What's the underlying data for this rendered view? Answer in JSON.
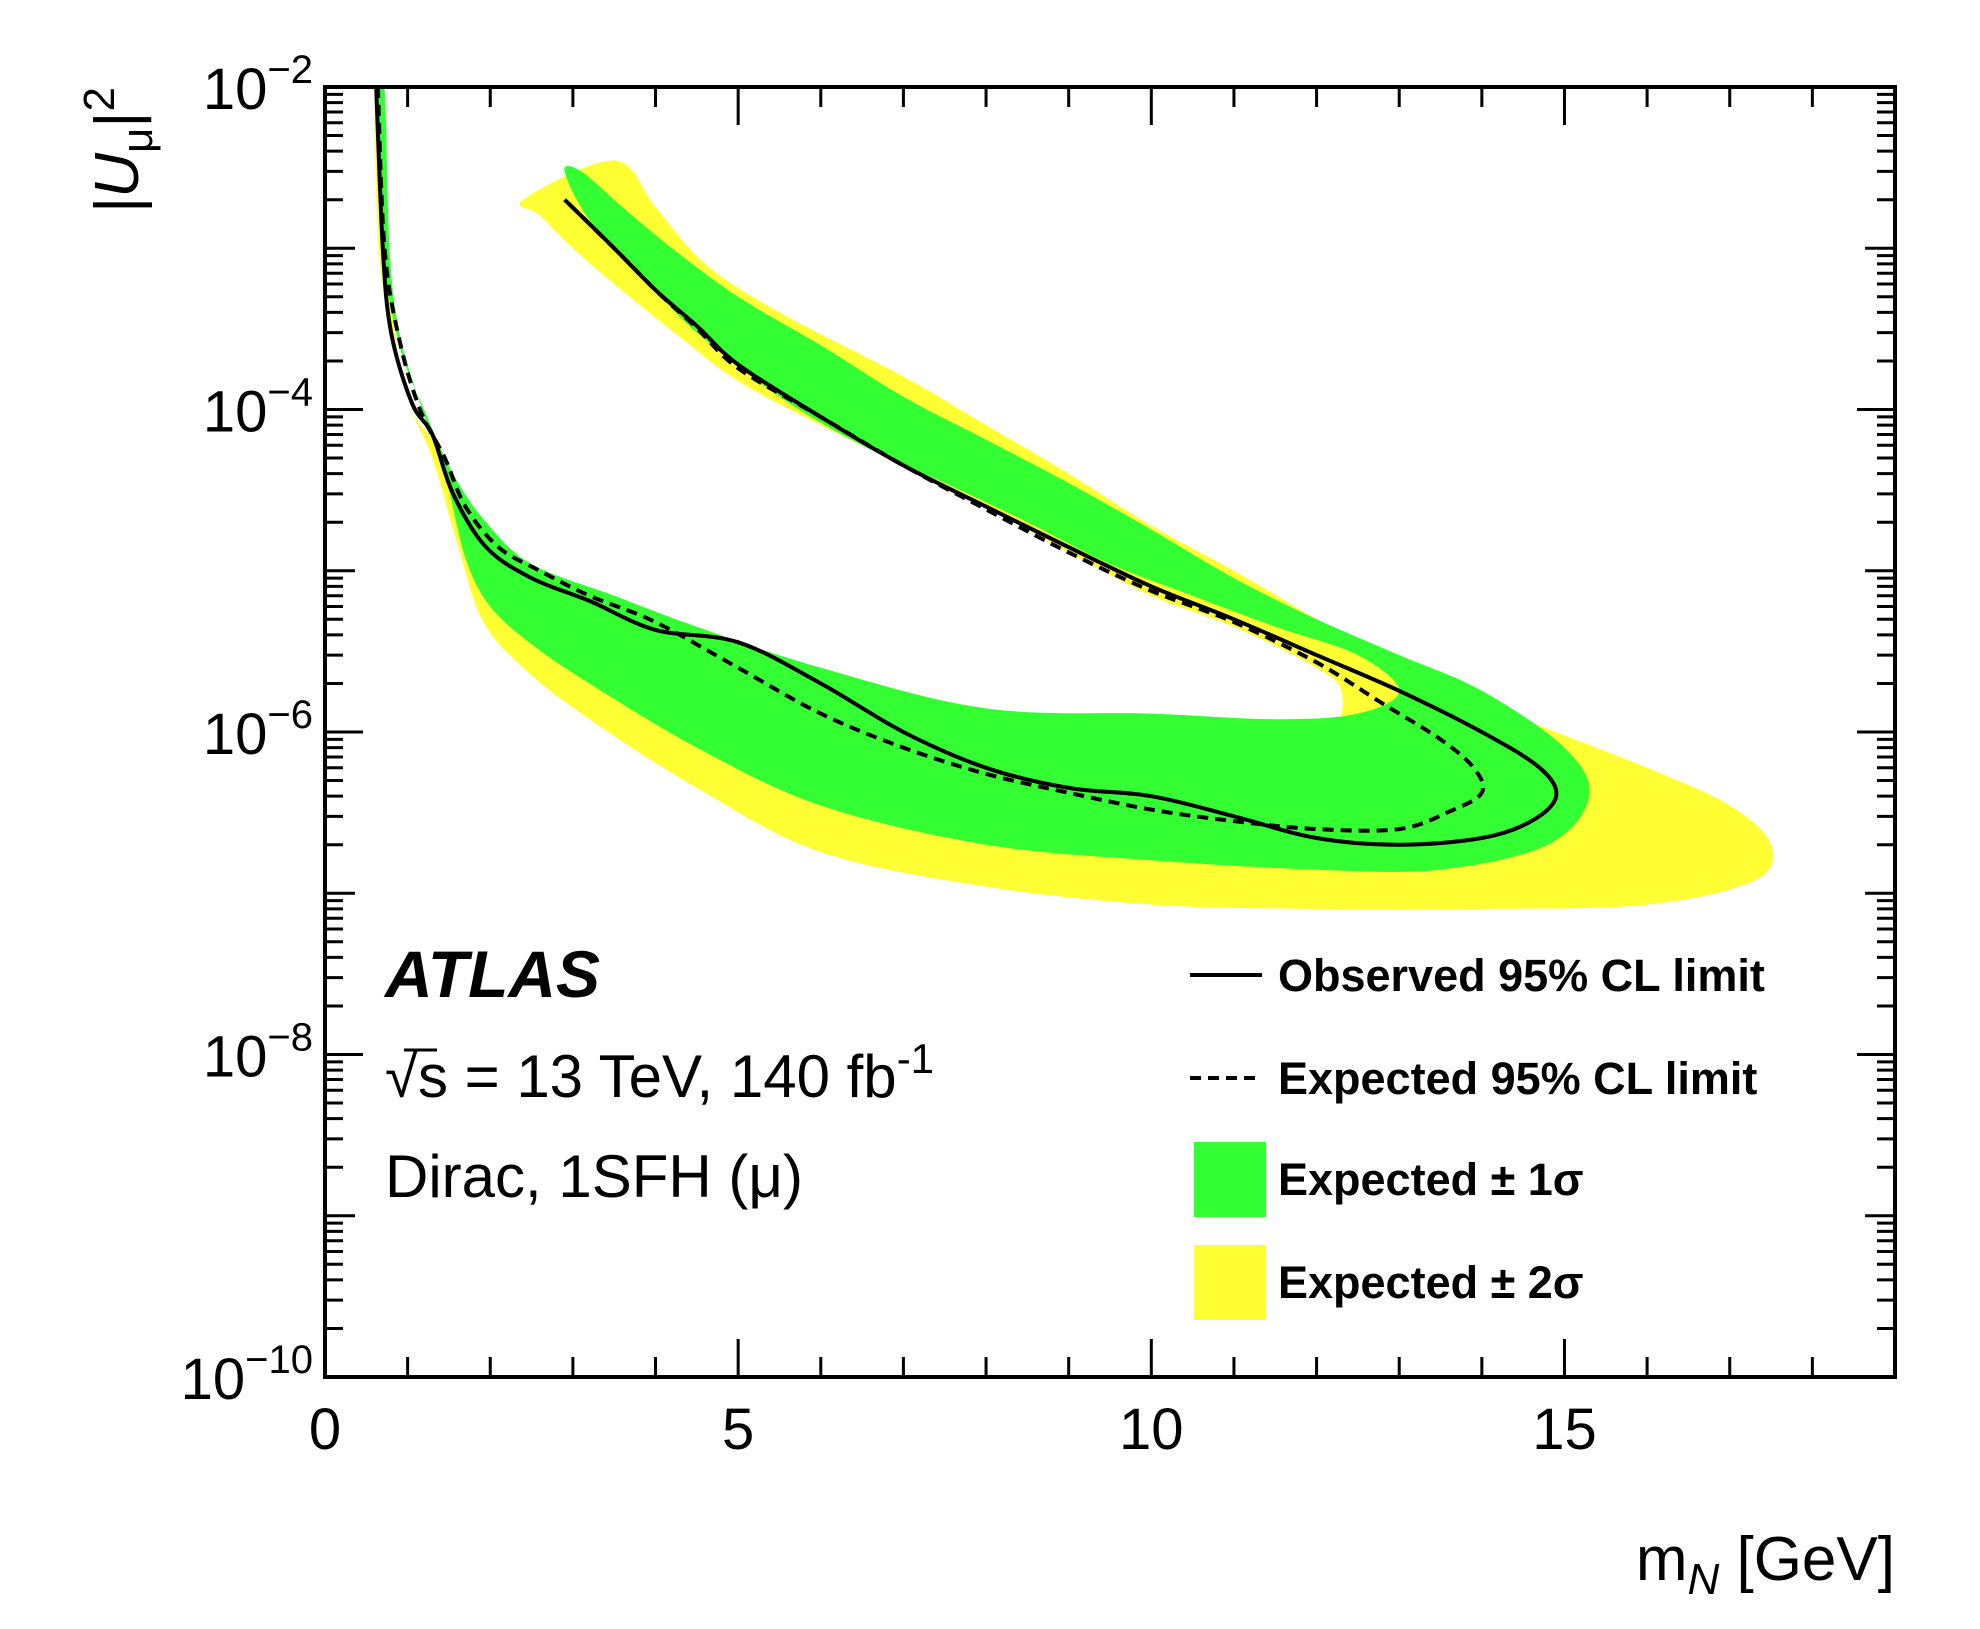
{
  "chart_data": {
    "type": "contour",
    "title": "",
    "xlabel": {
      "main": "m",
      "sub": "N",
      "unit": " [GeV]"
    },
    "ylabel": {
      "open": "|U",
      "sub": "μ",
      "close": "|",
      "sup": "2"
    },
    "xlim": [
      0,
      19
    ],
    "ylim": [
      1e-10,
      0.01
    ],
    "yscale": "log",
    "x_ticks": [
      0,
      5,
      10,
      15
    ],
    "x_tick_labels": [
      "0",
      "5",
      "10",
      "15"
    ],
    "y_ticks": [
      1e-10,
      1e-08,
      1e-06,
      0.0001,
      0.01
    ],
    "y_tick_labels": [
      {
        "base": "10",
        "exp": "−10"
      },
      {
        "base": "10",
        "exp": "−8"
      },
      {
        "base": "10",
        "exp": "−6"
      },
      {
        "base": "10",
        "exp": "−4"
      },
      {
        "base": "10",
        "exp": "−2"
      }
    ],
    "annotations": {
      "experiment": "ATLAS",
      "energy": {
        "sqrt": "√",
        "s": "s",
        "rest": " = 13 TeV, 140 fb",
        "sup": "-1"
      },
      "model": "Dirac, 1SFH (μ)"
    },
    "legend": {
      "position": "bottom-right",
      "entries": [
        {
          "label": "Observed 95% CL limit",
          "style": "solid"
        },
        {
          "label": "Expected 95% CL limit",
          "style": "dashed"
        },
        {
          "label": "Expected ± 1σ",
          "style": "fill",
          "color": "#33ff33"
        },
        {
          "label": "Expected ± 2σ",
          "style": "fill",
          "color": "#ffff33"
        }
      ]
    },
    "colors": {
      "band1sigma": "#33ff33",
      "band2sigma": "#ffff33",
      "line": "#000000"
    },
    "series": [
      {
        "style": "fill-2sigma",
        "points": [
          [
            0.6,
            0.01
          ],
          [
            0.65,
            0.001
          ],
          [
            0.8,
            0.0003
          ],
          [
            1.05,
            0.0001
          ],
          [
            1.35,
            6e-05
          ],
          [
            1.75,
            2.5e-05
          ],
          [
            2.2,
            1.2e-05
          ],
          [
            3,
            8e-06
          ],
          [
            4.2,
            5e-06
          ],
          [
            6,
            2.2e-06
          ],
          [
            8,
            1.2e-06
          ],
          [
            10,
            1e-06
          ],
          [
            11.5,
            9.5e-07
          ],
          [
            12.2,
            1.1e-06
          ],
          [
            12.3,
            1.8e-06
          ],
          [
            12,
            2.5e-06
          ],
          [
            11,
            4.5e-06
          ],
          [
            10,
            7e-06
          ],
          [
            9,
            1.3e-05
          ],
          [
            8,
            2.5e-05
          ],
          [
            7,
            4.5e-05
          ],
          [
            6,
            8e-05
          ],
          [
            5,
            0.00015
          ],
          [
            4.3,
            0.00028
          ],
          [
            3.5,
            0.0006
          ],
          [
            3,
            0.001
          ],
          [
            2.6,
            0.0016
          ],
          [
            2.4,
            0.002
          ],
          [
            3.5,
            0.0035
          ],
          [
            4,
            0.0018
          ],
          [
            4.6,
            0.0008
          ],
          [
            5.5,
            0.0004
          ],
          [
            7,
            0.00016
          ],
          [
            8,
            8e-05
          ],
          [
            9,
            4e-05
          ],
          [
            10,
            1.9e-05
          ],
          [
            11,
            1e-05
          ],
          [
            12,
            5e-06
          ],
          [
            13,
            2.5e-06
          ],
          [
            14.5,
            1.2e-06
          ],
          [
            16,
            6e-07
          ],
          [
            17,
            3.5e-07
          ],
          [
            17.5,
            2e-07
          ],
          [
            17.3,
            1.2e-07
          ],
          [
            16,
            8.5e-08
          ],
          [
            14,
            8e-08
          ],
          [
            12,
            8e-08
          ],
          [
            10,
            8.5e-08
          ],
          [
            8,
            1.1e-07
          ],
          [
            6,
            1.8e-07
          ],
          [
            4.5,
            4.5e-07
          ],
          [
            3.2,
            1.2e-06
          ],
          [
            2.4,
            2.5e-06
          ],
          [
            1.9,
            5e-06
          ],
          [
            1.6,
            1.5e-05
          ],
          [
            1.3,
            5e-05
          ],
          [
            1,
            0.00012
          ],
          [
            0.8,
            0.0005
          ],
          [
            0.7,
            0.01
          ]
        ]
      },
      {
        "style": "fill-1sigma",
        "points": [
          [
            0.62,
            0.01
          ],
          [
            0.7,
            0.001
          ],
          [
            0.9,
            0.00025
          ],
          [
            1.2,
            0.0001
          ],
          [
            1.55,
            4e-05
          ],
          [
            1.95,
            2e-05
          ],
          [
            2.5,
            1.1e-05
          ],
          [
            3.5,
            7e-06
          ],
          [
            4.5,
            4.5e-06
          ],
          [
            6,
            2.5e-06
          ],
          [
            8,
            1.4e-06
          ],
          [
            10,
            1.3e-06
          ],
          [
            11.5,
            1.2e-06
          ],
          [
            12.5,
            1.3e-06
          ],
          [
            13,
            1.8e-06
          ],
          [
            12.5,
            3e-06
          ],
          [
            11.5,
            4.5e-06
          ],
          [
            10.5,
            7e-06
          ],
          [
            9.5,
            1.1e-05
          ],
          [
            8.5,
            2e-05
          ],
          [
            7.5,
            3.5e-05
          ],
          [
            6.5,
            6e-05
          ],
          [
            5.5,
            0.00012
          ],
          [
            4.5,
            0.0003
          ],
          [
            3.8,
            0.0007
          ],
          [
            3.2,
            0.0015
          ],
          [
            2.9,
            0.003
          ],
          [
            3.1,
            0.003
          ],
          [
            3.6,
            0.0018
          ],
          [
            4.2,
            0.001
          ],
          [
            5,
            0.0005
          ],
          [
            6,
            0.00025
          ],
          [
            7,
            0.00012
          ],
          [
            8,
            6.5e-05
          ],
          [
            9,
            3.5e-05
          ],
          [
            10,
            1.8e-05
          ],
          [
            11,
            9e-06
          ],
          [
            12,
            5e-06
          ],
          [
            13,
            3e-06
          ],
          [
            14,
            1.8e-06
          ],
          [
            15,
            8e-07
          ],
          [
            15.3,
            4e-07
          ],
          [
            14.8,
            2e-07
          ],
          [
            13.5,
            1.4e-07
          ],
          [
            12,
            1.4e-07
          ],
          [
            10,
            1.6e-07
          ],
          [
            8,
            2e-07
          ],
          [
            6,
            3.5e-07
          ],
          [
            4.5,
            8e-07
          ],
          [
            3.2,
            2e-06
          ],
          [
            2.5,
            3.5e-06
          ],
          [
            2,
            6e-06
          ],
          [
            1.7,
            1.2e-05
          ],
          [
            1.45,
            4e-05
          ],
          [
            1.15,
            0.00011
          ],
          [
            0.9,
            0.0003
          ],
          [
            0.78,
            0.001
          ],
          [
            0.72,
            0.01
          ]
        ]
      },
      {
        "name": "Observed 95% CL limit",
        "style": "solid",
        "points": [
          [
            0.62,
            0.01
          ],
          [
            0.7,
            0.001
          ],
          [
            0.8,
            0.0003
          ],
          [
            1.05,
            0.00011
          ],
          [
            1.3,
            7e-05
          ],
          [
            1.55,
            3e-05
          ],
          [
            1.95,
            1.4e-05
          ],
          [
            2.5,
            9e-06
          ],
          [
            3.2,
            6.5e-06
          ],
          [
            4,
            4.3e-06
          ],
          [
            5,
            3.6e-06
          ],
          [
            6,
            2e-06
          ],
          [
            7,
            1e-06
          ],
          [
            8,
            6e-07
          ],
          [
            9,
            4.5e-07
          ],
          [
            10,
            4e-07
          ],
          [
            11,
            3e-07
          ],
          [
            12,
            2.2e-07
          ],
          [
            13,
            2e-07
          ],
          [
            14,
            2.2e-07
          ],
          [
            14.6,
            2.8e-07
          ],
          [
            14.9,
            4e-07
          ],
          [
            14.7,
            6e-07
          ],
          [
            14,
            1e-06
          ],
          [
            13,
            1.8e-06
          ],
          [
            12,
            3e-06
          ],
          [
            11,
            5e-06
          ],
          [
            10,
            8e-06
          ],
          [
            9,
            1.4e-05
          ],
          [
            8,
            2.5e-05
          ],
          [
            7,
            4.5e-05
          ],
          [
            6,
            9e-05
          ],
          [
            5,
            0.00019
          ],
          [
            4.5,
            0.00033
          ],
          [
            4,
            0.00055
          ],
          [
            3.5,
            0.001
          ],
          [
            2.9,
            0.002
          ]
        ]
      },
      {
        "name": "Expected 95% CL limit",
        "style": "dashed",
        "points": [
          [
            0.64,
            0.01
          ],
          [
            0.72,
            0.001
          ],
          [
            0.9,
            0.00027
          ],
          [
            1.15,
            0.0001
          ],
          [
            1.45,
            5e-05
          ],
          [
            1.7,
            2.5e-05
          ],
          [
            2.1,
            1.4e-05
          ],
          [
            2.6,
            1e-05
          ],
          [
            3.2,
            7e-06
          ],
          [
            4,
            4.8e-06
          ],
          [
            5,
            2.5e-06
          ],
          [
            6,
            1.3e-06
          ],
          [
            7,
            8e-07
          ],
          [
            8,
            5.5e-07
          ],
          [
            9,
            4.2e-07
          ],
          [
            10,
            3.3e-07
          ],
          [
            11,
            2.8e-07
          ],
          [
            12,
            2.5e-07
          ],
          [
            13,
            2.5e-07
          ],
          [
            13.6,
            3.2e-07
          ],
          [
            14,
            4.2e-07
          ],
          [
            13.9,
            6e-07
          ],
          [
            13.5,
            9e-07
          ],
          [
            12.8,
            1.5e-06
          ],
          [
            12,
            2.7e-06
          ],
          [
            11,
            4.8e-06
          ],
          [
            10,
            7.5e-06
          ],
          [
            9,
            1.3e-05
          ],
          [
            8,
            2.4e-05
          ],
          [
            7,
            4.5e-05
          ],
          [
            6,
            9e-05
          ],
          [
            5,
            0.00018
          ],
          [
            4.5,
            0.00032
          ],
          [
            4,
            0.00055
          ],
          [
            3.5,
            0.001
          ],
          [
            2.9,
            0.002
          ]
        ]
      }
    ]
  }
}
